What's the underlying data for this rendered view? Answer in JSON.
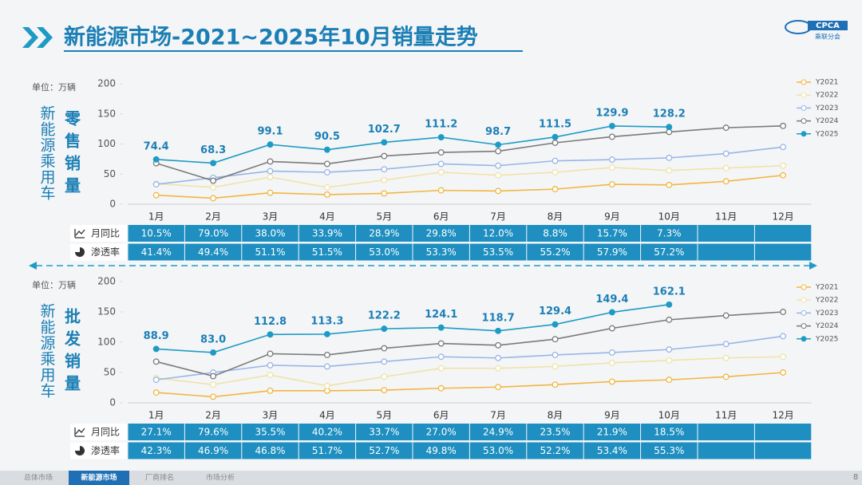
{
  "header": {
    "title": "新能源市场-2021~2025年10月销量走势",
    "logo": "CPCA",
    "logo_sub": "乘联分会"
  },
  "footer": {
    "tabs": [
      "总体市场",
      "新能源市场",
      "厂商排名",
      "市场分析"
    ],
    "active": 1,
    "page": "8"
  },
  "chart_data": [
    {
      "type": "line",
      "title": "零售销量",
      "ylabel": "新能源乘用车",
      "unit": "单位：万辆",
      "categories": [
        "1月",
        "2月",
        "3月",
        "4月",
        "5月",
        "6月",
        "7月",
        "8月",
        "9月",
        "10月",
        "11月",
        "12月"
      ],
      "ylim": [
        0,
        200
      ],
      "yticks": [
        0,
        50,
        100,
        150,
        200
      ],
      "legend": "right",
      "series": [
        {
          "name": "Y2021",
          "color": "#f2b640",
          "values": [
            15,
            10,
            19,
            16,
            18,
            23,
            22,
            25,
            33,
            32,
            38,
            48
          ]
        },
        {
          "name": "Y2022",
          "color": "#efe3a8",
          "values": [
            34,
            28,
            45,
            28,
            40,
            53,
            48,
            53,
            61,
            56,
            60,
            64
          ]
        },
        {
          "name": "Y2023",
          "color": "#98b6e6",
          "values": [
            33,
            44,
            55,
            53,
            58,
            67,
            64,
            72,
            74,
            77,
            84,
            95
          ]
        },
        {
          "name": "Y2024",
          "color": "#7a7a7a",
          "values": [
            68,
            39,
            71,
            67,
            80,
            86,
            88,
            102,
            112,
            120,
            127,
            130
          ]
        },
        {
          "name": "Y2025",
          "color": "#1e9bc5",
          "values": [
            74.4,
            68.3,
            99.1,
            90.5,
            102.7,
            111.2,
            98.7,
            111.5,
            129.9,
            128.2,
            null,
            null
          ],
          "value_labels": [
            "74.4",
            "68.3",
            "99.1",
            "90.5",
            "102.7",
            "111.2",
            "98.7",
            "111.5",
            "129.9",
            "128.2",
            null,
            null
          ]
        }
      ],
      "table": {
        "rows": [
          {
            "label": "月同比",
            "cells": [
              "10.5%",
              "79.0%",
              "38.0%",
              "33.9%",
              "28.9%",
              "29.8%",
              "12.0%",
              "8.8%",
              "15.7%",
              "7.3%",
              null,
              null
            ]
          },
          {
            "label": "渗透率",
            "cells": [
              "41.4%",
              "49.4%",
              "51.1%",
              "51.5%",
              "53.0%",
              "53.3%",
              "53.5%",
              "55.2%",
              "57.9%",
              "57.2%",
              null,
              null
            ]
          }
        ]
      }
    },
    {
      "type": "line",
      "title": "批发销量",
      "ylabel": "新能源乘用车",
      "unit": "单位：万辆",
      "categories": [
        "1月",
        "2月",
        "3月",
        "4月",
        "5月",
        "6月",
        "7月",
        "8月",
        "9月",
        "10月",
        "11月",
        "12月"
      ],
      "ylim": [
        0,
        200
      ],
      "yticks": [
        0,
        50,
        100,
        150,
        200
      ],
      "legend": "right",
      "series": [
        {
          "name": "Y2021",
          "color": "#f2b640",
          "values": [
            17,
            10,
            20,
            20,
            21,
            24,
            26,
            30,
            35,
            38,
            43,
            50
          ]
        },
        {
          "name": "Y2022",
          "color": "#efe3a8",
          "values": [
            41,
            30,
            46,
            28,
            43,
            57,
            57,
            60,
            66,
            70,
            74,
            76
          ]
        },
        {
          "name": "Y2023",
          "color": "#98b6e6",
          "values": [
            38,
            50,
            62,
            60,
            68,
            76,
            74,
            79,
            83,
            88,
            97,
            110
          ]
        },
        {
          "name": "Y2024",
          "color": "#7a7a7a",
          "values": [
            68,
            44,
            81,
            79,
            90,
            98,
            95,
            105,
            123,
            137,
            144,
            150
          ]
        },
        {
          "name": "Y2025",
          "color": "#1e9bc5",
          "values": [
            88.9,
            83.0,
            112.8,
            113.3,
            122.2,
            124.1,
            118.7,
            129.4,
            149.4,
            162.1,
            null,
            null
          ],
          "value_labels": [
            "88.9",
            "83.0",
            "112.8",
            "113.3",
            "122.2",
            "124.1",
            "118.7",
            "129.4",
            "149.4",
            "162.1",
            null,
            null
          ]
        }
      ],
      "table": {
        "rows": [
          {
            "label": "月同比",
            "cells": [
              "27.1%",
              "79.6%",
              "35.5%",
              "40.2%",
              "33.7%",
              "27.0%",
              "24.9%",
              "23.5%",
              "21.9%",
              "18.5%",
              null,
              null
            ]
          },
          {
            "label": "渗透率",
            "cells": [
              "42.3%",
              "46.9%",
              "46.8%",
              "51.7%",
              "52.7%",
              "49.8%",
              "53.0%",
              "52.2%",
              "53.4%",
              "55.3%",
              null,
              null
            ]
          }
        ]
      }
    }
  ]
}
